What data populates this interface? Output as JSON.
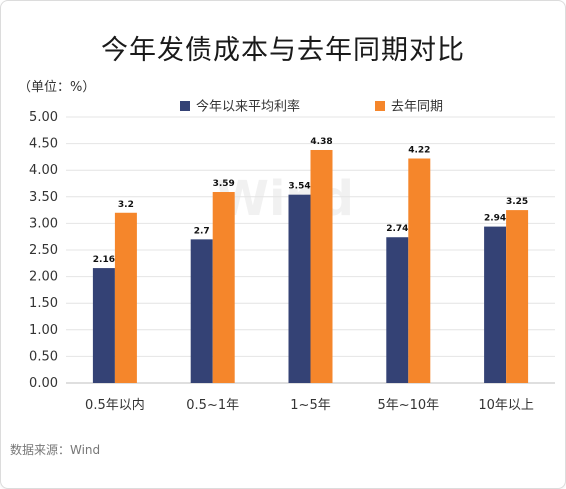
{
  "title": "今年发债成本与去年同期对比",
  "unit_label": "（单位：%）",
  "source": "数据来源：Wind",
  "watermark": "Wind",
  "chart_data": {
    "type": "bar",
    "title": "今年发债成本与去年同期对比",
    "xlabel": "",
    "ylabel": "",
    "ylim": [
      0,
      5
    ],
    "yticks": [
      0,
      0.5,
      1,
      1.5,
      2,
      2.5,
      3,
      3.5,
      4,
      4.5,
      5
    ],
    "ytick_labels": [
      "0.00",
      "0.50",
      "1.00",
      "1.50",
      "2.00",
      "2.50",
      "3.00",
      "3.50",
      "4.00",
      "4.50",
      "5.00"
    ],
    "grid": true,
    "legend_position": "top",
    "categories": [
      "0.5年以内",
      "0.5~1年",
      "1~5年",
      "5年~10年",
      "10年以上"
    ],
    "series": [
      {
        "name": "今年以来平均利率",
        "color": "#344275",
        "values": [
          2.16,
          2.7,
          3.54,
          2.74,
          2.94
        ],
        "labels": [
          "2.16",
          "2.7",
          "3.54",
          "2.74",
          "2.94"
        ]
      },
      {
        "name": "去年同期",
        "color": "#f5862b",
        "values": [
          3.2,
          3.59,
          4.38,
          4.22,
          3.25
        ],
        "labels": [
          "3.2",
          "3.59",
          "4.38",
          "4.22",
          "3.25"
        ]
      }
    ]
  }
}
